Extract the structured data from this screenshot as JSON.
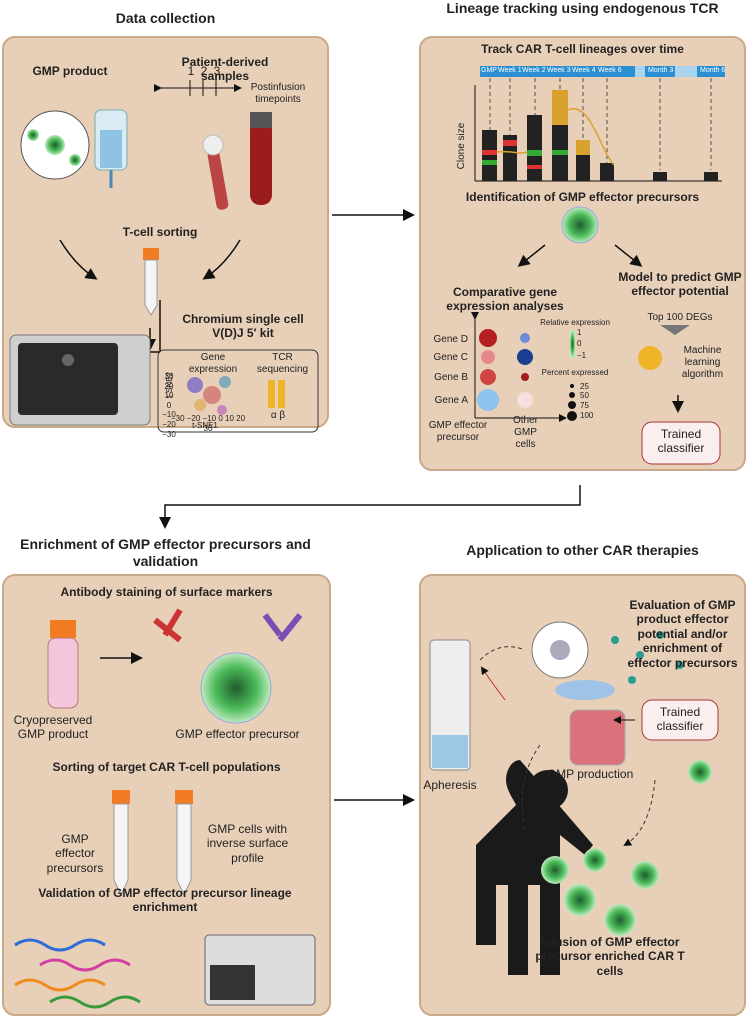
{
  "data_collection": {
    "heading": "Data collection",
    "gmp_product": "GMP product",
    "patient_samples": "Patient-derived samples",
    "timepoints": [
      "1",
      "2",
      "3"
    ],
    "timepoint_label": "Postinfusion timepoints",
    "sorting": "T-cell sorting",
    "kit": "Chromium single cell V(D)J 5′ kit",
    "gene_expression": "Gene expression",
    "tcr_sequencing": "TCR sequencing",
    "tsne_y": "t-SNE2",
    "tsne_x": "t-SNE1",
    "tsne_yticks": "30 20 10 0 −10 −20 −30",
    "tsne_xticks": "−30 −20 −10 0 10 20 30",
    "chains": "α β"
  },
  "lineage_tracking": {
    "heading": "Lineage tracking using endogenous TCR",
    "track_title": "Track CAR T-cell lineages over time",
    "timeline": [
      "GMP",
      "Week 1",
      "Week 2",
      "Week 3",
      "Week 4",
      "Week 6",
      "Month 3",
      "Month 6"
    ],
    "clone_size": "Clone size",
    "identification": "Identification of GMP effector precursors",
    "comparative": "Comparative gene expression analyses",
    "model": "Model to predict GMP effector potential",
    "top_degs": "Top 100 DEGs",
    "ml": "Machine learning algorithm",
    "classifier": "Trained classifier",
    "genes": [
      "Gene D",
      "Gene C",
      "Gene B",
      "Gene A"
    ],
    "groups": [
      "GMP effector precursor",
      "Other GMP cells"
    ],
    "rel_expr": "Relative expression",
    "rel_ticks": [
      "1",
      "0",
      "−1"
    ],
    "pct_expr": "Percent expressed",
    "pct_ticks": [
      "25",
      "50",
      "75",
      "100"
    ]
  },
  "enrichment": {
    "heading": "Enrichment of GMP effector precursors and validation",
    "staining": "Antibody staining of surface markers",
    "cryo": "Cryopreserved GMP product",
    "effector_precursor": "GMP effector precursor",
    "sorting": "Sorting of target CAR T-cell populations",
    "tube_1": "GMP effector precursors",
    "tube_2": "GMP cells with inverse surface profile",
    "validation": "Validation of GMP effector precursor lineage enrichment"
  },
  "application": {
    "heading": "Application to other CAR therapies",
    "evaluation": "Evaluation of GMP product effector potential and/or enrichment of effector precursors",
    "apheresis": "Apheresis",
    "production": "GMP production",
    "classifier": "Trained classifier",
    "infusion": "Infusion of GMP effector precursor enriched CAR T cells"
  }
}
